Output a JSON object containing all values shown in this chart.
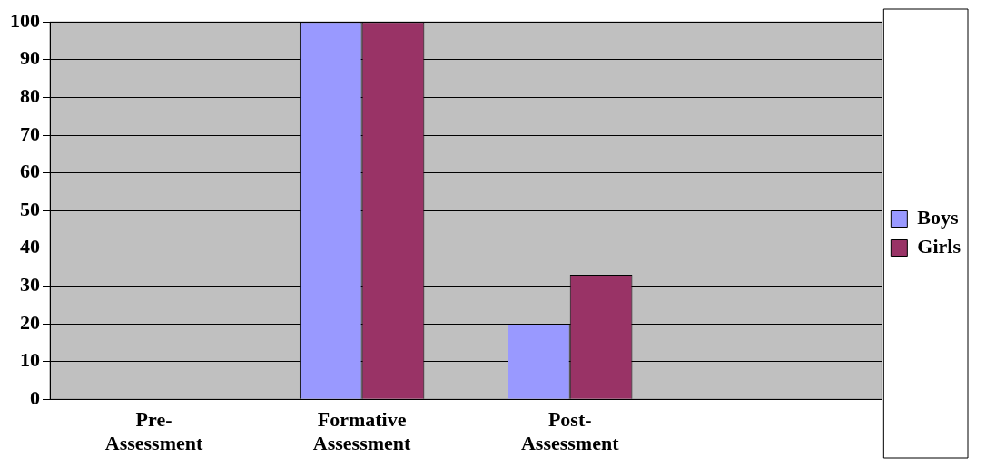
{
  "chart_data": {
    "type": "bar",
    "categories": [
      "Pre-Assessment",
      "Formative Assessment",
      "Post-Assessment",
      null
    ],
    "series": [
      {
        "name": "Boys",
        "color": "#9999ff",
        "values": [
          0,
          100,
          20,
          null
        ]
      },
      {
        "name": "Girls",
        "color": "#993366",
        "values": [
          0,
          100,
          33,
          null
        ]
      }
    ],
    "ylim": [
      0,
      100
    ],
    "yticks": [
      0,
      10,
      20,
      30,
      40,
      50,
      60,
      70,
      80,
      90,
      100
    ],
    "grid": "y",
    "legend": "right"
  }
}
